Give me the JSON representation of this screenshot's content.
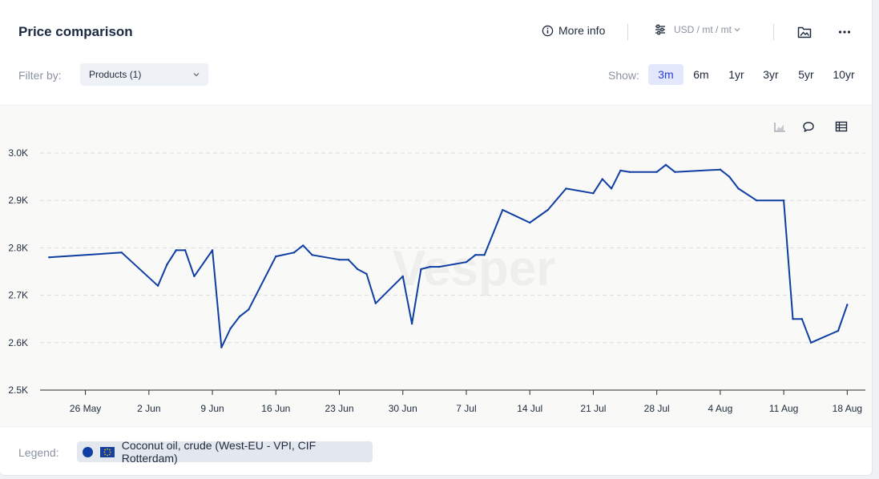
{
  "header": {
    "title": "Price comparison",
    "more_info_label": "More info",
    "units_label": "USD / mt / mt"
  },
  "filter": {
    "label": "Filter by:",
    "selected": "Products (1)"
  },
  "range": {
    "label": "Show:",
    "options": [
      "3m",
      "6m",
      "1yr",
      "3yr",
      "5yr",
      "10yr"
    ],
    "active": "3m"
  },
  "legend": {
    "label": "Legend:",
    "entry": "Coconut oil, crude (West-EU - VPI, CIF Rotterdam)"
  },
  "watermark": "Vesper",
  "colors": {
    "series": "#0f3ea2",
    "accent": "#2a3fd1",
    "grid": "#dcdcdc"
  },
  "chart_data": {
    "type": "line",
    "xlabel": "",
    "ylabel": "",
    "ylim": [
      2500,
      3000
    ],
    "yticks": [
      2500,
      2600,
      2700,
      2800,
      2900,
      3000
    ],
    "ytick_labels": [
      "2.5K",
      "2.6K",
      "2.7K",
      "2.8K",
      "2.9K",
      "3.0K"
    ],
    "xlim": [
      "2024-05-21",
      "2024-08-20"
    ],
    "xticks": [
      "2024-05-26",
      "2024-06-02",
      "2024-06-09",
      "2024-06-16",
      "2024-06-23",
      "2024-06-30",
      "2024-07-07",
      "2024-07-14",
      "2024-07-21",
      "2024-07-28",
      "2024-08-04",
      "2024-08-11",
      "2024-08-18"
    ],
    "xtick_labels": [
      "26 May",
      "2 Jun",
      "9 Jun",
      "16 Jun",
      "23 Jun",
      "30 Jun",
      "7 Jul",
      "14 Jul",
      "21 Jul",
      "28 Jul",
      "4 Aug",
      "11 Aug",
      "18 Aug"
    ],
    "grid": true,
    "series": [
      {
        "name": "Coconut oil, crude (West-EU - VPI, CIF Rotterdam)",
        "x": [
          "2024-05-22",
          "2024-05-30",
          "2024-06-03",
          "2024-06-04",
          "2024-06-05",
          "2024-06-06",
          "2024-06-07",
          "2024-06-09",
          "2024-06-10",
          "2024-06-11",
          "2024-06-12",
          "2024-06-13",
          "2024-06-16",
          "2024-06-18",
          "2024-06-19",
          "2024-06-20",
          "2024-06-23",
          "2024-06-24",
          "2024-06-25",
          "2024-06-26",
          "2024-06-27",
          "2024-06-30",
          "2024-07-01",
          "2024-07-02",
          "2024-07-03",
          "2024-07-04",
          "2024-07-07",
          "2024-07-08",
          "2024-07-09",
          "2024-07-11",
          "2024-07-14",
          "2024-07-16",
          "2024-07-18",
          "2024-07-21",
          "2024-07-22",
          "2024-07-23",
          "2024-07-24",
          "2024-07-25",
          "2024-07-28",
          "2024-07-29",
          "2024-07-30",
          "2024-08-04",
          "2024-08-05",
          "2024-08-06",
          "2024-08-08",
          "2024-08-11",
          "2024-08-12",
          "2024-08-13",
          "2024-08-14",
          "2024-08-17",
          "2024-08-18"
        ],
        "y": [
          2780,
          2790,
          2720,
          2765,
          2795,
          2795,
          2740,
          2795,
          2590,
          2630,
          2655,
          2670,
          2782,
          2790,
          2805,
          2785,
          2775,
          2775,
          2755,
          2745,
          2683,
          2740,
          2640,
          2755,
          2760,
          2760,
          2770,
          2785,
          2785,
          2880,
          2853,
          2880,
          2925,
          2915,
          2945,
          2925,
          2963,
          2960,
          2960,
          2975,
          2960,
          2965,
          2950,
          2925,
          2900,
          2900,
          2650,
          2650,
          2600,
          2625,
          2680
        ]
      }
    ]
  }
}
